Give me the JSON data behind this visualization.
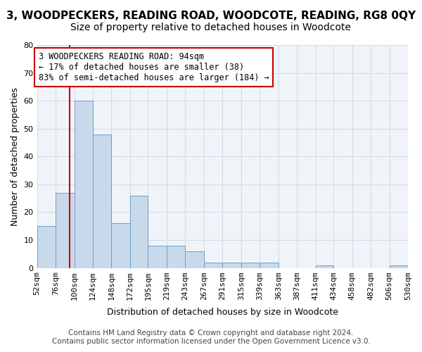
{
  "title": "3, WOODPECKERS, READING ROAD, WOODCOTE, READING, RG8 0QY",
  "subtitle": "Size of property relative to detached houses in Woodcote",
  "xlabel": "Distribution of detached houses by size in Woodcote",
  "ylabel": "Number of detached properties",
  "bar_color": "#c9d9ec",
  "bar_edge_color": "#6a9fca",
  "grid_color": "#d0dde8",
  "background_color": "#f0f4f8",
  "vline_x": 94,
  "vline_color": "#cc0000",
  "bin_edges": [
    52,
    76,
    100,
    124,
    148,
    172,
    195,
    219,
    243,
    267,
    291,
    315,
    339,
    363,
    387,
    411,
    434,
    458,
    482,
    506,
    530
  ],
  "bar_heights": [
    15,
    27,
    60,
    48,
    16,
    26,
    8,
    8,
    6,
    2,
    2,
    2,
    2,
    0,
    0,
    1,
    0,
    0,
    0,
    1
  ],
  "ylim": [
    0,
    80
  ],
  "yticks": [
    0,
    10,
    20,
    30,
    40,
    50,
    60,
    70,
    80
  ],
  "annotation_text": "3 WOODPECKERS READING ROAD: 94sqm\n← 17% of detached houses are smaller (38)\n83% of semi-detached houses are larger (184) →",
  "annotation_box_color": "white",
  "annotation_box_edge_color": "#cc0000",
  "footer_line1": "Contains HM Land Registry data © Crown copyright and database right 2024.",
  "footer_line2": "Contains public sector information licensed under the Open Government Licence v3.0.",
  "title_fontsize": 11,
  "subtitle_fontsize": 10,
  "tick_fontsize": 8,
  "annotation_fontsize": 8.5,
  "footer_fontsize": 7.5
}
